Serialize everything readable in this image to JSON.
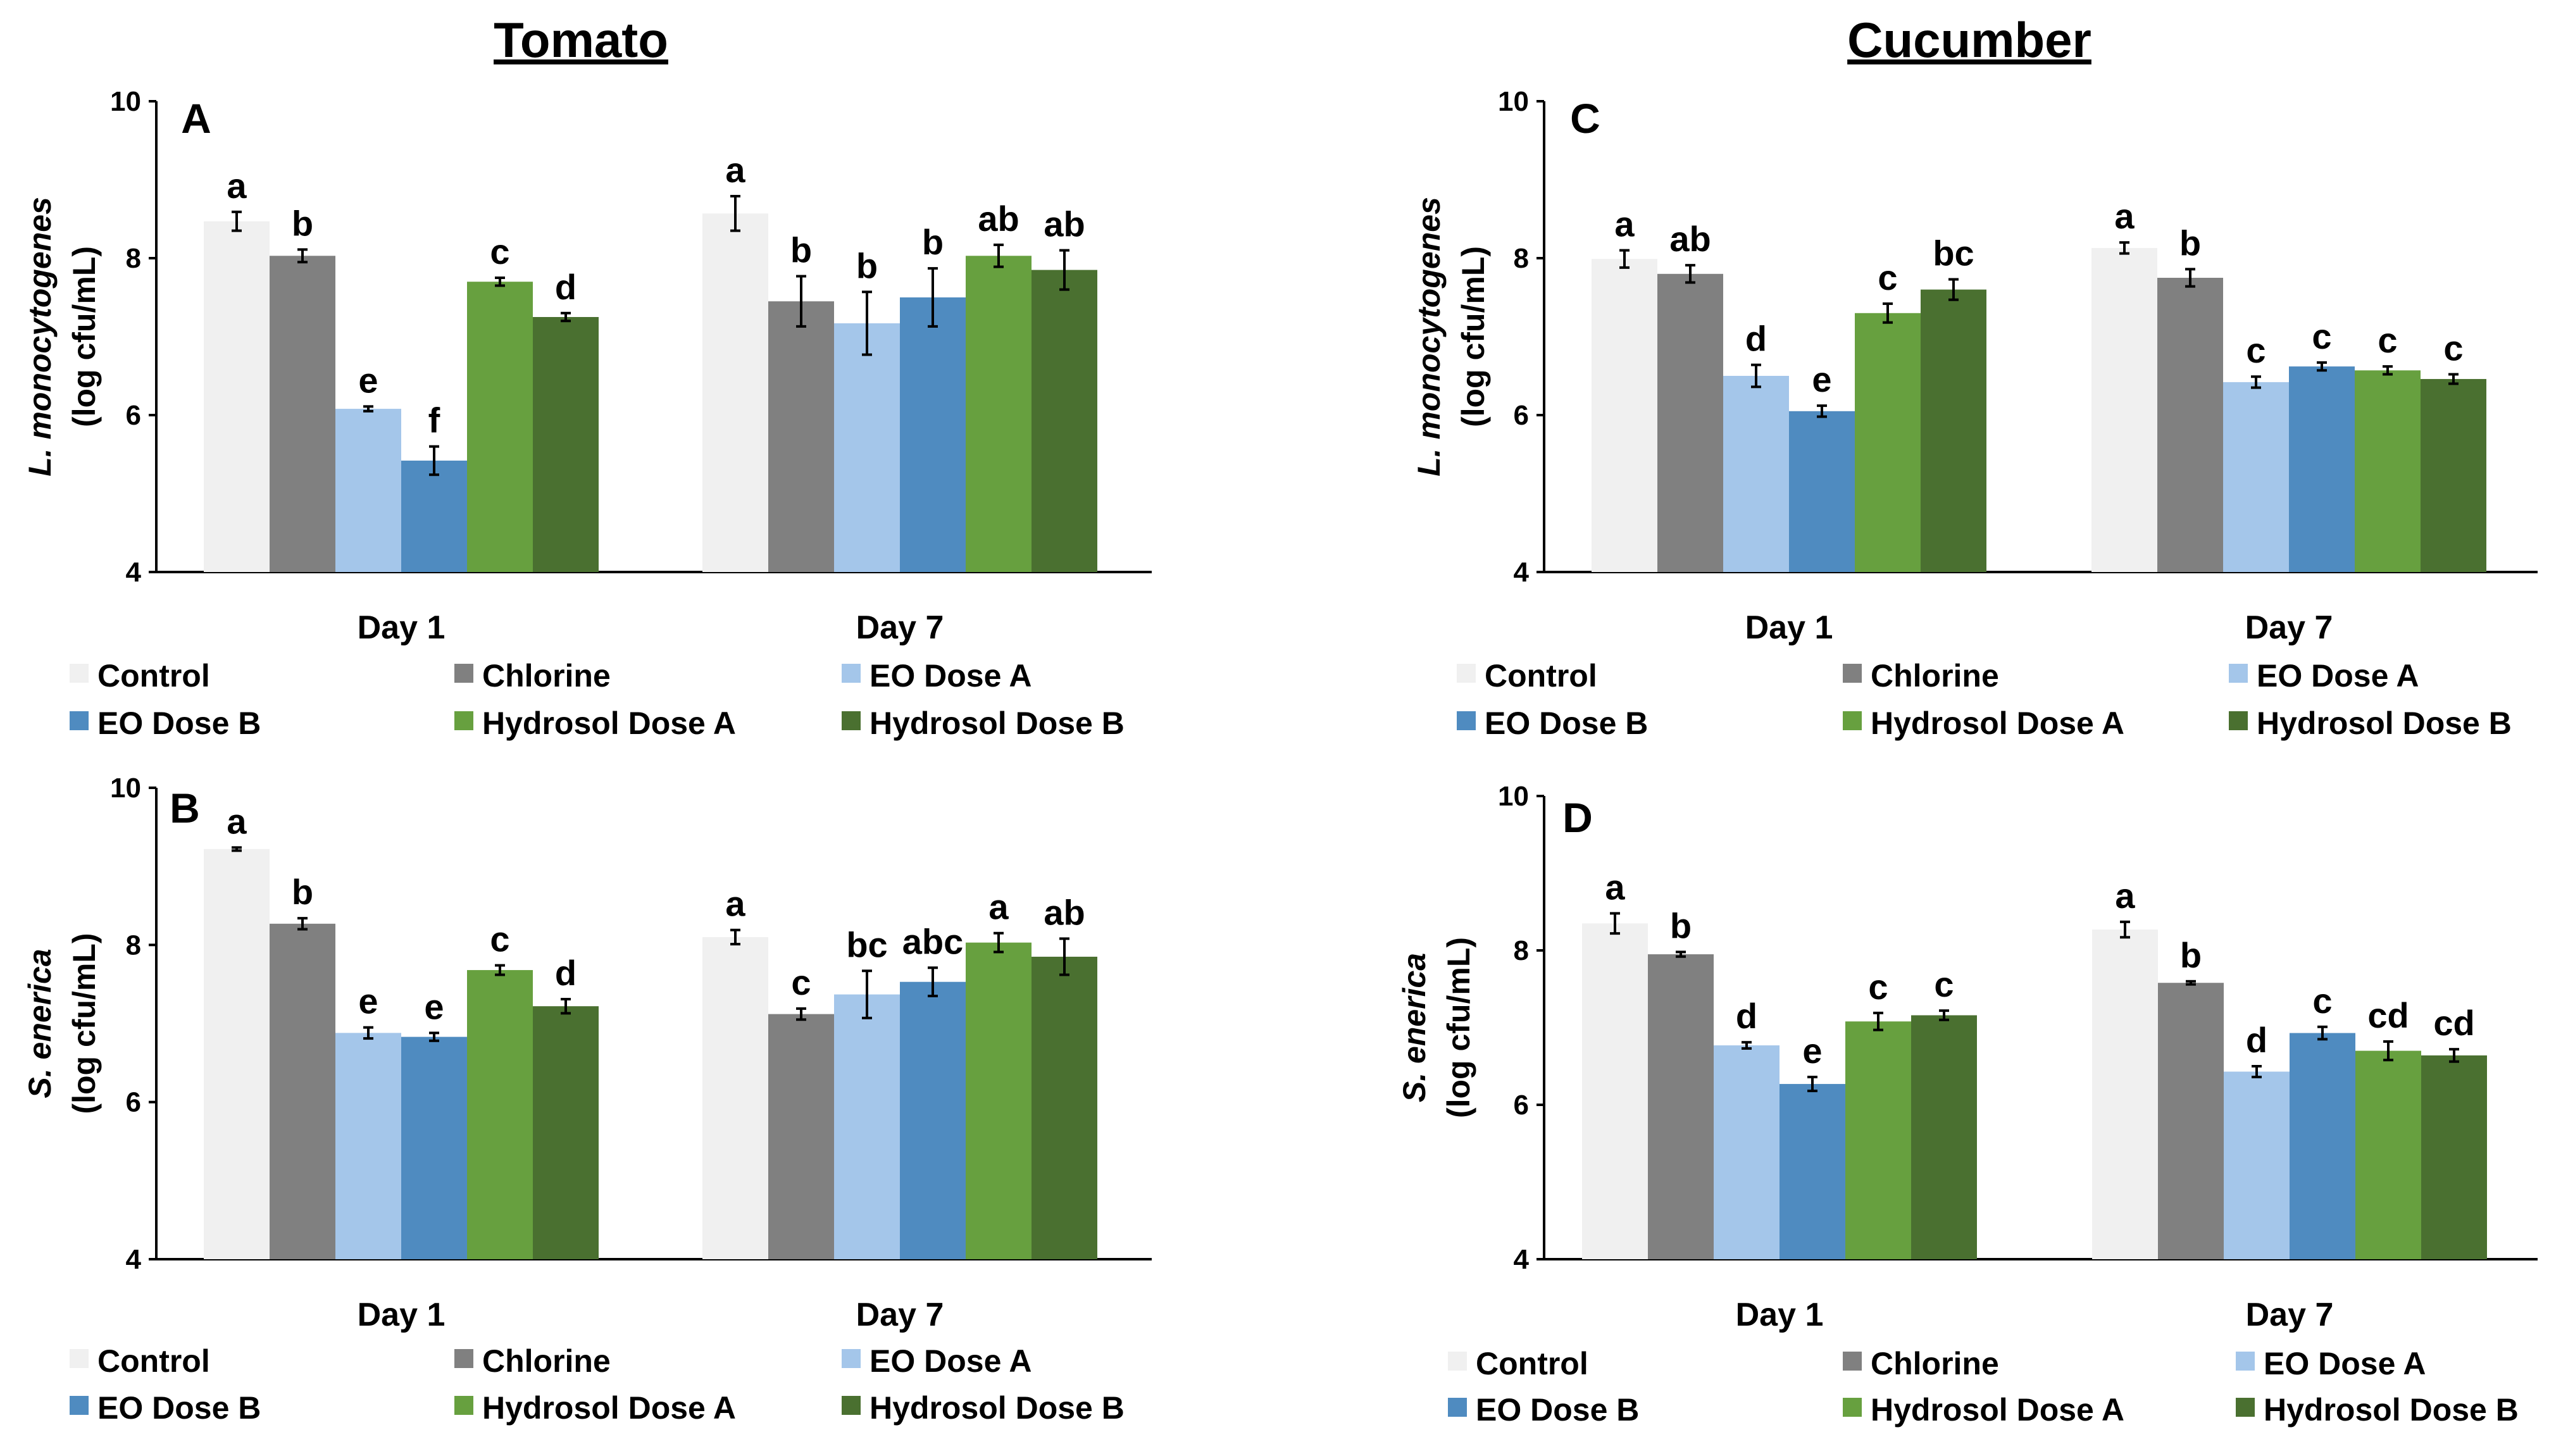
{
  "section_titles": {
    "left": "Tomato",
    "right": "Cucumber"
  },
  "colors": {
    "Control": "#f0f0f0",
    "Chlorine": "#808080",
    "EO Dose A": "#a4c6ea",
    "EO Dose B": "#4f8bc0",
    "Hydrosol Dose A": "#67a03f",
    "Hydrosol Dose B": "#4a7030"
  },
  "legend": [
    "Control",
    "Chlorine",
    "EO Dose A",
    "EO Dose B",
    "Hydrosol Dose A",
    "Hydrosol Dose B"
  ],
  "chart_data": [
    {
      "id": "A",
      "type": "bar",
      "section": "Tomato",
      "panel_letter": "A",
      "ylabel_species": "L. monocytogenes",
      "ylabel_unit": "(log cfu/mL)",
      "ylim": [
        4,
        10
      ],
      "yticks": [
        4,
        6,
        8,
        10
      ],
      "categories": [
        "Day 1",
        "Day 7"
      ],
      "series": [
        {
          "name": "Control",
          "values": [
            8.47,
            8.57
          ],
          "errors": [
            0.12,
            0.22
          ],
          "letters": [
            "a",
            "a"
          ]
        },
        {
          "name": "Chlorine",
          "values": [
            8.03,
            7.45
          ],
          "errors": [
            0.08,
            0.32
          ],
          "letters": [
            "b",
            "b"
          ]
        },
        {
          "name": "EO Dose A",
          "values": [
            6.08,
            7.17
          ],
          "errors": [
            0.03,
            0.4
          ],
          "letters": [
            "e",
            "b"
          ]
        },
        {
          "name": "EO Dose B",
          "values": [
            5.42,
            7.5
          ],
          "errors": [
            0.18,
            0.37
          ],
          "letters": [
            "f",
            "b"
          ]
        },
        {
          "name": "Hydrosol Dose A",
          "values": [
            7.7,
            8.03
          ],
          "errors": [
            0.05,
            0.14
          ],
          "letters": [
            "c",
            "ab"
          ]
        },
        {
          "name": "Hydrosol Dose B",
          "values": [
            7.25,
            7.85
          ],
          "errors": [
            0.05,
            0.25
          ],
          "letters": [
            "d",
            "ab"
          ]
        }
      ]
    },
    {
      "id": "B",
      "type": "bar",
      "section": "Tomato",
      "panel_letter": "B",
      "ylabel_species": "S. enerica",
      "ylabel_unit": "(log cfu/mL)",
      "ylim": [
        4,
        10
      ],
      "yticks": [
        4,
        6,
        8,
        10
      ],
      "categories": [
        "Day 1",
        "Day 7"
      ],
      "series": [
        {
          "name": "Control",
          "values": [
            9.22,
            8.1
          ],
          "errors": [
            0.02,
            0.09
          ],
          "letters": [
            "a",
            "a"
          ]
        },
        {
          "name": "Chlorine",
          "values": [
            8.27,
            7.12
          ],
          "errors": [
            0.07,
            0.07
          ],
          "letters": [
            "b",
            "c"
          ]
        },
        {
          "name": "EO Dose A",
          "values": [
            6.88,
            7.37
          ],
          "errors": [
            0.07,
            0.3
          ],
          "letters": [
            "e",
            "bc"
          ]
        },
        {
          "name": "EO Dose B",
          "values": [
            6.83,
            7.53
          ],
          "errors": [
            0.05,
            0.18
          ],
          "letters": [
            "e",
            "abc"
          ]
        },
        {
          "name": "Hydrosol Dose A",
          "values": [
            7.68,
            8.03
          ],
          "errors": [
            0.06,
            0.12
          ],
          "letters": [
            "c",
            "a"
          ]
        },
        {
          "name": "Hydrosol Dose B",
          "values": [
            7.22,
            7.85
          ],
          "errors": [
            0.09,
            0.23
          ],
          "letters": [
            "d",
            "ab"
          ]
        }
      ]
    },
    {
      "id": "C",
      "type": "bar",
      "section": "Cucumber",
      "panel_letter": "C",
      "ylabel_species": "L. monocytogenes",
      "ylabel_unit": "(log cfu/mL)",
      "ylim": [
        4,
        10
      ],
      "yticks": [
        4,
        6,
        8,
        10
      ],
      "categories": [
        "Day 1",
        "Day 7"
      ],
      "series": [
        {
          "name": "Control",
          "values": [
            7.99,
            8.13
          ],
          "errors": [
            0.11,
            0.07
          ],
          "letters": [
            "a",
            "a"
          ]
        },
        {
          "name": "Chlorine",
          "values": [
            7.8,
            7.75
          ],
          "errors": [
            0.11,
            0.11
          ],
          "letters": [
            "ab",
            "b"
          ]
        },
        {
          "name": "EO Dose A",
          "values": [
            6.5,
            6.42
          ],
          "errors": [
            0.14,
            0.07
          ],
          "letters": [
            "d",
            "c"
          ]
        },
        {
          "name": "EO Dose B",
          "values": [
            6.05,
            6.62
          ],
          "errors": [
            0.07,
            0.05
          ],
          "letters": [
            "e",
            "c"
          ]
        },
        {
          "name": "Hydrosol Dose A",
          "values": [
            7.3,
            6.57
          ],
          "errors": [
            0.12,
            0.05
          ],
          "letters": [
            "c",
            "c"
          ]
        },
        {
          "name": "Hydrosol Dose B",
          "values": [
            7.6,
            6.46
          ],
          "errors": [
            0.13,
            0.06
          ],
          "letters": [
            "bc",
            "c"
          ]
        }
      ]
    },
    {
      "id": "D",
      "type": "bar",
      "section": "Cucumber",
      "panel_letter": "D",
      "ylabel_species": "S. enerica",
      "ylabel_unit": "(log cfu/mL)",
      "ylim": [
        4,
        10
      ],
      "yticks": [
        4,
        6,
        8,
        10
      ],
      "categories": [
        "Day 1",
        "Day 7"
      ],
      "series": [
        {
          "name": "Control",
          "values": [
            8.35,
            8.27
          ],
          "errors": [
            0.13,
            0.1
          ],
          "letters": [
            "a",
            "a"
          ]
        },
        {
          "name": "Chlorine",
          "values": [
            7.95,
            7.58
          ],
          "errors": [
            0.03,
            0.02
          ],
          "letters": [
            "b",
            "b"
          ]
        },
        {
          "name": "EO Dose A",
          "values": [
            6.77,
            6.43
          ],
          "errors": [
            0.04,
            0.07
          ],
          "letters": [
            "d",
            "d"
          ]
        },
        {
          "name": "EO Dose B",
          "values": [
            6.27,
            6.93
          ],
          "errors": [
            0.09,
            0.08
          ],
          "letters": [
            "e",
            "c"
          ]
        },
        {
          "name": "Hydrosol Dose A",
          "values": [
            7.08,
            6.7
          ],
          "errors": [
            0.11,
            0.12
          ],
          "letters": [
            "c",
            "cd"
          ]
        },
        {
          "name": "Hydrosol Dose B",
          "values": [
            7.16,
            6.64
          ],
          "errors": [
            0.06,
            0.08
          ],
          "letters": [
            "c",
            "cd"
          ]
        }
      ]
    }
  ]
}
